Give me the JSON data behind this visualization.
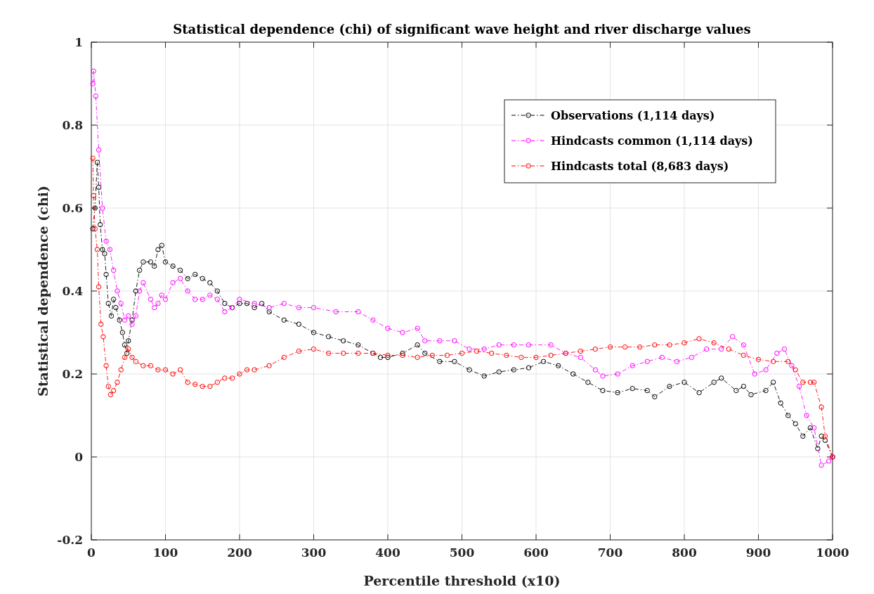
{
  "chart_data": {
    "type": "line",
    "title": "Statistical dependence (chi) of significant wave height and river discharge values",
    "xlabel": "Percentile threshold (x10)",
    "ylabel": "Statistical dependence (chi)",
    "xlim": [
      0,
      1000
    ],
    "xticks": [
      0,
      100,
      200,
      300,
      400,
      500,
      600,
      700,
      800,
      900,
      1000
    ],
    "ylim": [
      -0.2,
      1
    ],
    "yticks": [
      -0.2,
      0,
      0.2,
      0.4,
      0.6,
      0.8,
      1
    ],
    "grid": true,
    "legend": "top right",
    "marker": "circle",
    "line_style": "dashed",
    "series": [
      {
        "name": "Observations (1,114 days)",
        "color": "#000000",
        "x": [
          2,
          5,
          8,
          10,
          12,
          15,
          18,
          20,
          23,
          27,
          30,
          33,
          38,
          42,
          45,
          48,
          50,
          55,
          60,
          65,
          70,
          80,
          85,
          90,
          95,
          100,
          110,
          120,
          130,
          140,
          150,
          160,
          170,
          180,
          190,
          200,
          210,
          220,
          230,
          240,
          260,
          280,
          300,
          320,
          340,
          360,
          380,
          390,
          400,
          420,
          440,
          450,
          470,
          490,
          510,
          530,
          550,
          570,
          590,
          610,
          630,
          650,
          670,
          690,
          710,
          730,
          750,
          760,
          780,
          800,
          820,
          840,
          850,
          870,
          880,
          890,
          910,
          920,
          930,
          940,
          950,
          960,
          970,
          980,
          985,
          990,
          1000
        ],
        "values": [
          0.55,
          0.6,
          0.71,
          0.65,
          0.56,
          0.5,
          0.49,
          0.44,
          0.37,
          0.34,
          0.38,
          0.36,
          0.33,
          0.3,
          0.27,
          0.25,
          0.28,
          0.33,
          0.4,
          0.45,
          0.47,
          0.47,
          0.46,
          0.5,
          0.51,
          0.47,
          0.46,
          0.45,
          0.43,
          0.44,
          0.43,
          0.42,
          0.4,
          0.37,
          0.36,
          0.37,
          0.37,
          0.36,
          0.37,
          0.35,
          0.33,
          0.32,
          0.3,
          0.29,
          0.28,
          0.27,
          0.25,
          0.24,
          0.24,
          0.25,
          0.27,
          0.25,
          0.23,
          0.23,
          0.21,
          0.195,
          0.205,
          0.21,
          0.215,
          0.23,
          0.22,
          0.2,
          0.18,
          0.16,
          0.155,
          0.165,
          0.16,
          0.145,
          0.17,
          0.18,
          0.155,
          0.18,
          0.19,
          0.16,
          0.17,
          0.15,
          0.16,
          0.18,
          0.13,
          0.1,
          0.08,
          0.05,
          0.07,
          0.02,
          0.05,
          0.04,
          0
        ]
      },
      {
        "name": "Hindcasts common (1,114 days)",
        "color": "#ff00ff",
        "x": [
          2,
          3,
          6,
          10,
          15,
          20,
          25,
          30,
          35,
          40,
          45,
          50,
          55,
          60,
          65,
          70,
          80,
          85,
          90,
          95,
          100,
          110,
          120,
          130,
          140,
          150,
          160,
          170,
          180,
          190,
          200,
          220,
          240,
          260,
          280,
          300,
          330,
          360,
          380,
          400,
          420,
          440,
          450,
          470,
          490,
          510,
          530,
          550,
          570,
          590,
          620,
          640,
          660,
          680,
          690,
          710,
          730,
          750,
          770,
          790,
          810,
          830,
          850,
          865,
          880,
          895,
          910,
          925,
          935,
          945,
          955,
          965,
          975,
          985,
          995,
          1000
        ],
        "values": [
          0.9,
          0.93,
          0.87,
          0.74,
          0.6,
          0.52,
          0.5,
          0.45,
          0.4,
          0.37,
          0.33,
          0.34,
          0.32,
          0.34,
          0.4,
          0.42,
          0.38,
          0.36,
          0.37,
          0.39,
          0.38,
          0.42,
          0.43,
          0.4,
          0.38,
          0.38,
          0.39,
          0.38,
          0.35,
          0.36,
          0.38,
          0.37,
          0.36,
          0.37,
          0.36,
          0.36,
          0.35,
          0.35,
          0.33,
          0.31,
          0.3,
          0.31,
          0.28,
          0.28,
          0.28,
          0.26,
          0.26,
          0.27,
          0.27,
          0.27,
          0.27,
          0.25,
          0.24,
          0.21,
          0.195,
          0.2,
          0.22,
          0.23,
          0.24,
          0.23,
          0.24,
          0.26,
          0.26,
          0.29,
          0.27,
          0.2,
          0.21,
          0.25,
          0.26,
          0.22,
          0.17,
          0.1,
          0.07,
          -0.02,
          -0.01,
          0
        ]
      },
      {
        "name": "Hindcasts total (8,683 days)",
        "color": "#ff0000",
        "x": [
          2,
          3,
          5,
          8,
          10,
          13,
          16,
          20,
          23,
          26,
          30,
          35,
          40,
          45,
          50,
          55,
          60,
          70,
          80,
          90,
          100,
          110,
          120,
          130,
          140,
          150,
          160,
          170,
          180,
          190,
          200,
          210,
          220,
          240,
          260,
          280,
          300,
          320,
          340,
          360,
          380,
          400,
          420,
          440,
          460,
          480,
          500,
          520,
          540,
          560,
          580,
          600,
          620,
          640,
          660,
          680,
          700,
          720,
          740,
          760,
          780,
          800,
          820,
          840,
          860,
          880,
          900,
          920,
          940,
          950,
          960,
          970,
          975,
          985,
          990,
          1000
        ],
        "values": [
          0.72,
          0.63,
          0.55,
          0.5,
          0.41,
          0.32,
          0.29,
          0.22,
          0.17,
          0.15,
          0.16,
          0.18,
          0.21,
          0.24,
          0.26,
          0.24,
          0.23,
          0.22,
          0.22,
          0.21,
          0.21,
          0.2,
          0.21,
          0.18,
          0.175,
          0.17,
          0.17,
          0.18,
          0.19,
          0.19,
          0.2,
          0.21,
          0.21,
          0.22,
          0.24,
          0.255,
          0.26,
          0.25,
          0.25,
          0.25,
          0.25,
          0.245,
          0.245,
          0.24,
          0.245,
          0.245,
          0.25,
          0.255,
          0.25,
          0.245,
          0.24,
          0.24,
          0.245,
          0.25,
          0.255,
          0.26,
          0.265,
          0.265,
          0.265,
          0.27,
          0.27,
          0.275,
          0.285,
          0.275,
          0.26,
          0.245,
          0.235,
          0.23,
          0.23,
          0.21,
          0.18,
          0.18,
          0.18,
          0.12,
          0.05,
          0
        ]
      }
    ]
  }
}
